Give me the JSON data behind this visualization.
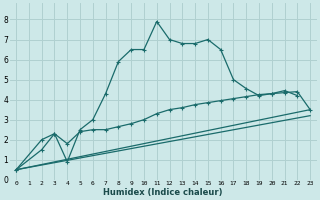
{
  "xlabel": "Humidex (Indice chaleur)",
  "bg_color": "#cde8e8",
  "grid_color": "#b0d0d0",
  "line_color": "#1a6b6b",
  "xlim": [
    -0.5,
    23.5
  ],
  "ylim": [
    0,
    8.8
  ],
  "xticks": [
    0,
    1,
    2,
    3,
    4,
    5,
    6,
    7,
    8,
    9,
    10,
    11,
    12,
    13,
    14,
    15,
    16,
    17,
    18,
    19,
    20,
    21,
    22,
    23
  ],
  "yticks": [
    0,
    1,
    2,
    3,
    4,
    5,
    6,
    7,
    8
  ],
  "line1_x": [
    0,
    2,
    3,
    4,
    5,
    6,
    7,
    8,
    9,
    10,
    11,
    12,
    13,
    14,
    15,
    16,
    17,
    18,
    19,
    20,
    21,
    22
  ],
  "line1_y": [
    0.5,
    2.0,
    2.3,
    0.9,
    2.5,
    3.0,
    4.3,
    5.9,
    6.5,
    6.5,
    7.9,
    7.0,
    6.8,
    6.8,
    7.0,
    6.5,
    5.0,
    4.55,
    4.2,
    4.3,
    4.45,
    4.2
  ],
  "line2_x": [
    0,
    2,
    3,
    4,
    5,
    6,
    7,
    8,
    9,
    10,
    11,
    12,
    13,
    14,
    15,
    16,
    17,
    18,
    19,
    20,
    21,
    22,
    23
  ],
  "line2_y": [
    0.5,
    1.5,
    2.3,
    1.8,
    2.4,
    2.5,
    2.5,
    2.65,
    2.8,
    3.0,
    3.3,
    3.5,
    3.6,
    3.75,
    3.85,
    3.95,
    4.05,
    4.15,
    4.25,
    4.3,
    4.35,
    4.4,
    3.5
  ],
  "line3_x": [
    0,
    23
  ],
  "line3_y": [
    0.5,
    3.5
  ],
  "line4_x": [
    0,
    23
  ],
  "line4_y": [
    0.5,
    3.2
  ]
}
